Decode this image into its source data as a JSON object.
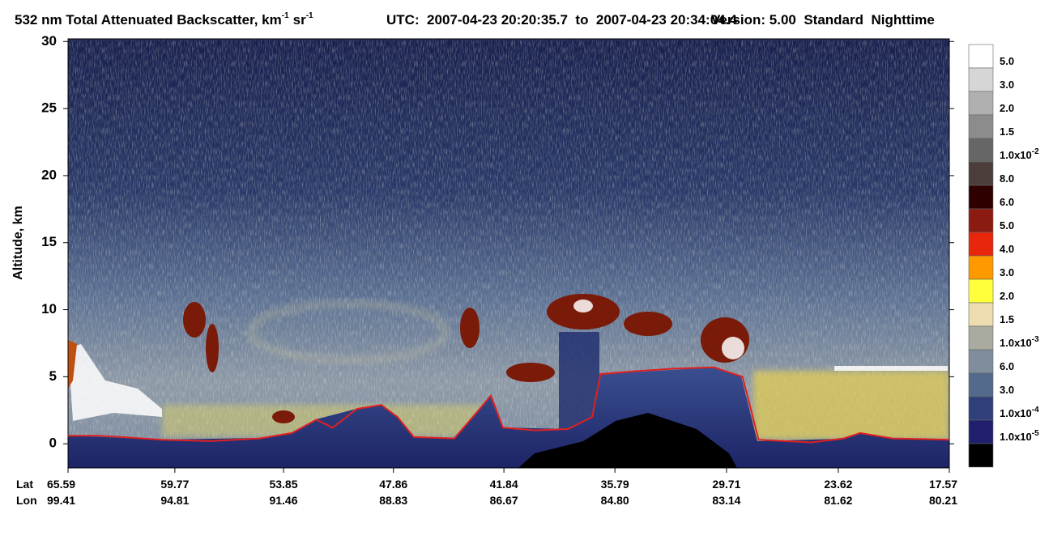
{
  "chart_data": {
    "type": "line",
    "title": {
      "main": "532 nm Total Attenuated Backscatter, km",
      "exp_1": "-1",
      "unit_2": "sr",
      "exp_2": "-1"
    },
    "utc": "UTC:  2007-04-23 20:20:35.7  to  2007-04-23 20:34:04.4",
    "version": "Version: 5.00  Standard  Nighttime",
    "y_label": "Altitude, km",
    "ylim": [
      -1.8,
      30.2
    ],
    "yticks": [
      0,
      5,
      10,
      15,
      20,
      25,
      30
    ],
    "xlim": [
      65.59,
      17.57
    ],
    "x_row_label": "Lat",
    "xticks": [
      65.59,
      59.77,
      53.85,
      47.86,
      41.84,
      35.79,
      29.71,
      23.62,
      17.57
    ],
    "lon_row_label": "Lon",
    "lon_ticks": [
      99.41,
      94.81,
      91.46,
      88.83,
      86.67,
      {
        "value": 84.8,
        "label": "84.80"
      },
      83.14,
      81.62,
      80.21
    ],
    "series": [
      {
        "color": "#e02020",
        "x": [
          65.59,
          64.0,
          62.67,
          60.46,
          57.81,
          55.16,
          53.39,
          52.06,
          51.17,
          49.85,
          48.52,
          47.64,
          46.75,
          44.54,
          43.22,
          42.55,
          41.89,
          40.12,
          38.35,
          37.03,
          36.58,
          34.81,
          32.6,
          30.39,
          28.84,
          27.96,
          25.09,
          23.32,
          22.43,
          20.66,
          17.57
        ],
        "values": [
          0.6,
          0.6,
          0.5,
          0.3,
          0.2,
          0.4,
          0.8,
          1.8,
          1.2,
          2.6,
          2.9,
          2.0,
          0.5,
          0.4,
          2.5,
          3.6,
          1.2,
          1.0,
          1.1,
          2.0,
          5.2,
          5.4,
          5.6,
          5.7,
          5.0,
          0.3,
          0.1,
          0.4,
          0.8,
          0.4,
          0.3
        ]
      }
    ],
    "colorbar": {
      "colors": [
        "#ffffff",
        "#d6d6d6",
        "#b0b0b0",
        "#8c8c8c",
        "#666666",
        "#4a3d3a",
        "#2e0000",
        "#8b1a10",
        "#e8260c",
        "#ff9900",
        "#ffff3c",
        "#ecdcb0",
        "#a9aaa0",
        "#7f8d9c",
        "#536a8c",
        "#2e3f7a",
        "#1f1f6e",
        "#000000"
      ],
      "labels": [
        {
          "text": "5.0"
        },
        {
          "text": "3.0"
        },
        {
          "text": "2.0"
        },
        {
          "text": "1.5"
        },
        {
          "text": "1.0x10",
          "exp": "-2"
        },
        {
          "text": "8.0"
        },
        {
          "text": "6.0"
        },
        {
          "text": "5.0"
        },
        {
          "text": "4.0"
        },
        {
          "text": "3.0"
        },
        {
          "text": "2.0"
        },
        {
          "text": "1.5"
        },
        {
          "text": "1.0x10",
          "exp": "-3"
        },
        {
          "text": "6.0"
        },
        {
          "text": "3.0"
        },
        {
          "text": "1.0x10",
          "exp": "-4"
        },
        {
          "text": "1.0x10",
          "exp": "-5"
        }
      ]
    }
  }
}
